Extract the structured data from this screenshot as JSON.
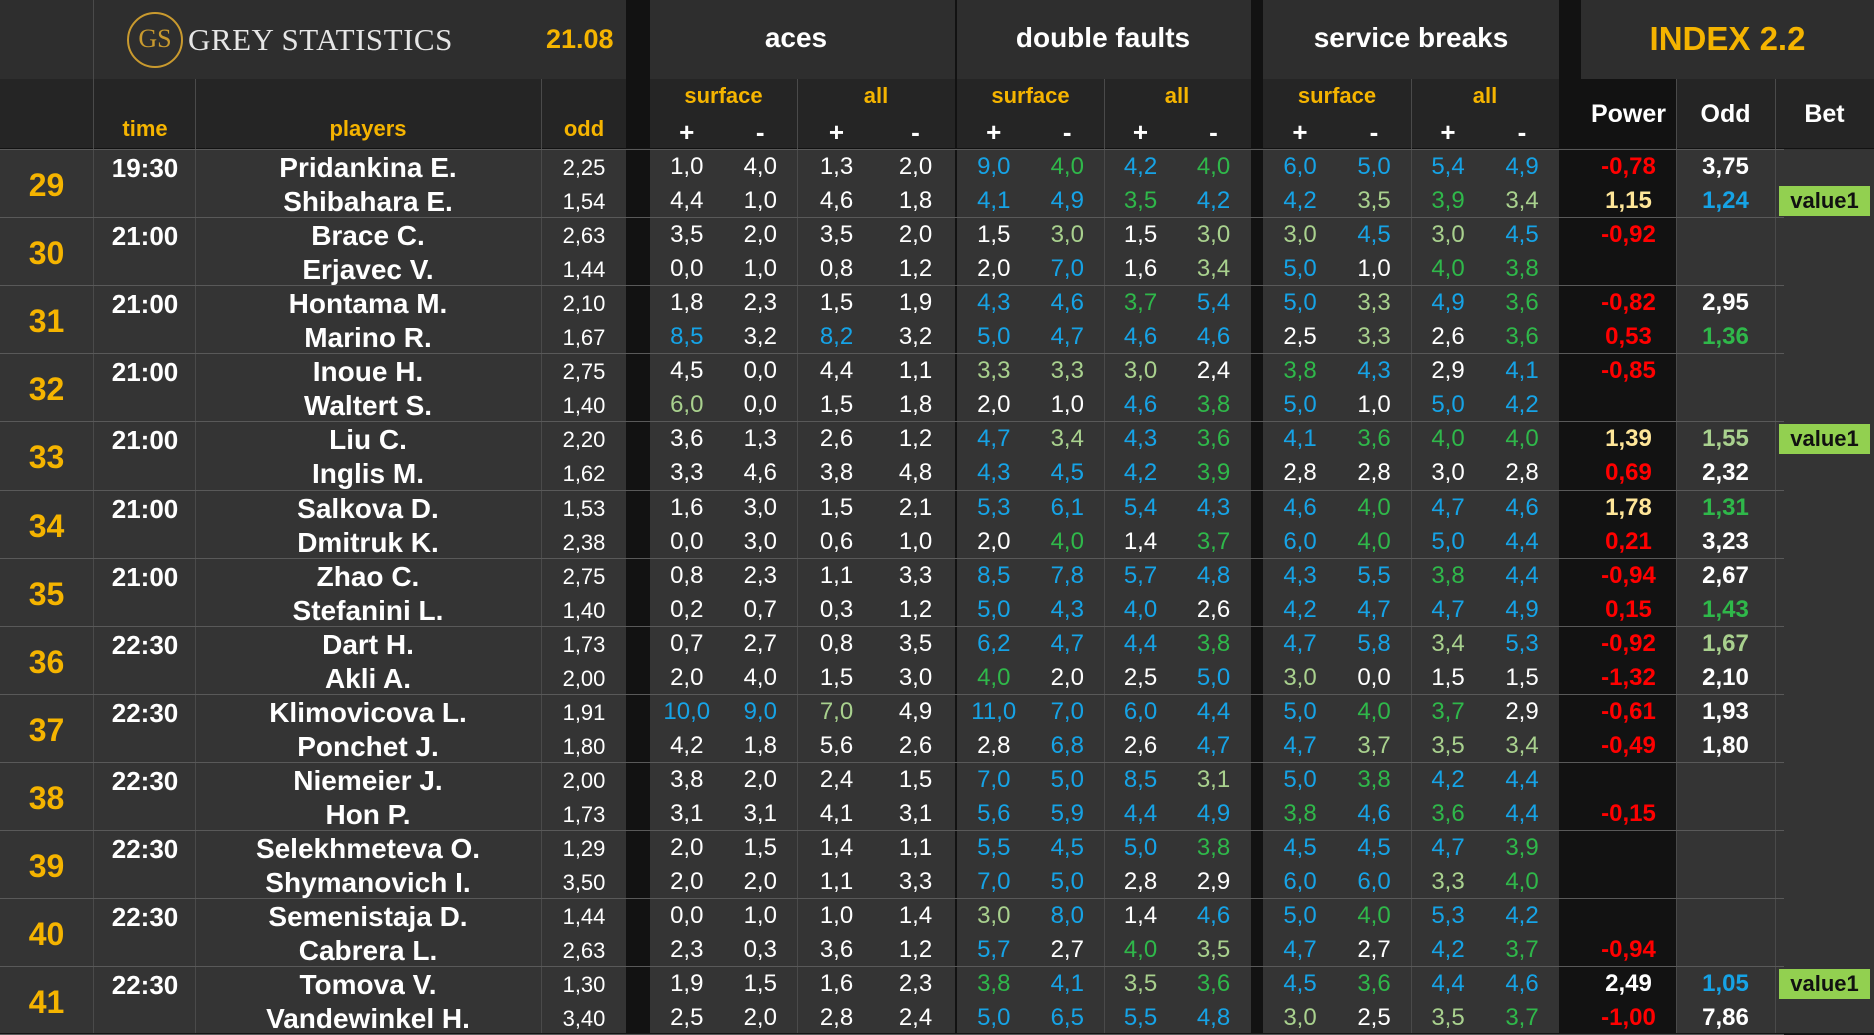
{
  "header": {
    "logo_mark": "GS",
    "brand": "GREY STATISTICS",
    "date": "21.08",
    "groups": [
      "aces",
      "double faults",
      "service breaks"
    ],
    "index_title": "INDEX 2.2",
    "col_time": "time",
    "col_players": "players",
    "col_odd": "odd",
    "sub_surface": "surface",
    "sub_all": "all",
    "plus": "+",
    "minus": "-",
    "idx_power": "Power",
    "idx_odd": "Odd",
    "idx_bet": "Bet"
  },
  "colors": {
    "blue": "#16a3e6",
    "lightgreen": "#a9d18e",
    "green": "#2fb84a",
    "white": "#ffffff",
    "red": "#ff0000",
    "yellow": "#ffe699",
    "gold": "#f5b400",
    "bet_bg": "#92d050"
  },
  "matches": [
    {
      "num": "29",
      "time": "19:30",
      "p": [
        {
          "name": "Pridankina E.",
          "odd": "2,25",
          "s": [
            "1,0:w",
            "4,0:w",
            "1,3:w",
            "2,0:w",
            "9,0:b",
            "4,0:g",
            "4,2:b",
            "4,0:g",
            "6,0:b",
            "5,0:b",
            "5,4:b",
            "4,9:b"
          ],
          "power": "-0,78:r",
          "iodd": "3,75:w",
          "bet": ""
        },
        {
          "name": "Shibahara E.",
          "odd": "1,54",
          "s": [
            "4,4:w",
            "1,0:w",
            "4,6:w",
            "1,8:w",
            "4,1:b",
            "4,9:b",
            "3,5:g",
            "4,2:b",
            "4,2:b",
            "3,5:l",
            "3,9:g",
            "3,4:l"
          ],
          "power": "1,15:y",
          "iodd": "1,24:b",
          "bet": "value1"
        }
      ]
    },
    {
      "num": "30",
      "time": "21:00",
      "p": [
        {
          "name": "Brace C.",
          "odd": "2,63",
          "s": [
            "3,5:w",
            "2,0:w",
            "3,5:w",
            "2,0:w",
            "1,5:w",
            "3,0:l",
            "1,5:w",
            "3,0:l",
            "3,0:l",
            "4,5:b",
            "3,0:l",
            "4,5:b"
          ],
          "power": "-0,92:r",
          "iodd": "",
          "bet": ""
        },
        {
          "name": "Erjavec V.",
          "odd": "1,44",
          "s": [
            "0,0:w",
            "1,0:w",
            "0,8:w",
            "1,2:w",
            "2,0:w",
            "7,0:b",
            "1,6:w",
            "3,4:l",
            "5,0:b",
            "1,0:w",
            "4,0:g",
            "3,8:g"
          ],
          "power": "",
          "iodd": "",
          "bet": ""
        }
      ]
    },
    {
      "num": "31",
      "time": "21:00",
      "p": [
        {
          "name": "Hontama M.",
          "odd": "2,10",
          "s": [
            "1,8:w",
            "2,3:w",
            "1,5:w",
            "1,9:w",
            "4,3:b",
            "4,6:b",
            "3,7:g",
            "5,4:b",
            "5,0:b",
            "3,3:l",
            "4,9:b",
            "3,6:g"
          ],
          "power": "-0,82:r",
          "iodd": "2,95:w",
          "bet": ""
        },
        {
          "name": "Marino R.",
          "odd": "1,67",
          "s": [
            "8,5:b",
            "3,2:w",
            "8,2:b",
            "3,2:w",
            "5,0:b",
            "4,7:b",
            "4,6:b",
            "4,6:b",
            "2,5:w",
            "3,3:l",
            "2,6:w",
            "3,6:g"
          ],
          "power": "0,53:r",
          "iodd": "1,36:g",
          "bet": ""
        }
      ]
    },
    {
      "num": "32",
      "time": "21:00",
      "p": [
        {
          "name": "Inoue H.",
          "odd": "2,75",
          "s": [
            "4,5:w",
            "0,0:w",
            "4,4:w",
            "1,1:w",
            "3,3:l",
            "3,3:l",
            "3,0:l",
            "2,4:w",
            "3,8:g",
            "4,3:b",
            "2,9:w",
            "4,1:b"
          ],
          "power": "-0,85:r",
          "iodd": "",
          "bet": ""
        },
        {
          "name": "Waltert S.",
          "odd": "1,40",
          "s": [
            "6,0:l",
            "0,0:w",
            "1,5:w",
            "1,8:w",
            "2,0:w",
            "1,0:w",
            "4,6:b",
            "3,8:g",
            "5,0:b",
            "1,0:w",
            "5,0:b",
            "4,2:b"
          ],
          "power": "",
          "iodd": "",
          "bet": ""
        }
      ]
    },
    {
      "num": "33",
      "time": "21:00",
      "p": [
        {
          "name": "Liu C.",
          "odd": "2,20",
          "s": [
            "3,6:w",
            "1,3:w",
            "2,6:w",
            "1,2:w",
            "4,7:b",
            "3,4:l",
            "4,3:b",
            "3,6:g",
            "4,1:b",
            "3,6:g",
            "4,0:g",
            "4,0:g"
          ],
          "power": "1,39:y",
          "iodd": "1,55:l",
          "bet": "value1"
        },
        {
          "name": "Inglis M.",
          "odd": "1,62",
          "s": [
            "3,3:w",
            "4,6:w",
            "3,8:w",
            "4,8:w",
            "4,3:b",
            "4,5:b",
            "4,2:b",
            "3,9:g",
            "2,8:w",
            "2,8:w",
            "3,0:w",
            "2,8:w"
          ],
          "power": "0,69:r",
          "iodd": "2,32:w",
          "bet": ""
        }
      ]
    },
    {
      "num": "34",
      "time": "21:00",
      "p": [
        {
          "name": "Salkova D.",
          "odd": "1,53",
          "s": [
            "1,6:w",
            "3,0:w",
            "1,5:w",
            "2,1:w",
            "5,3:b",
            "6,1:b",
            "5,4:b",
            "4,3:b",
            "4,6:b",
            "4,0:g",
            "4,7:b",
            "4,6:b"
          ],
          "power": "1,78:y",
          "iodd": "1,31:g",
          "bet": ""
        },
        {
          "name": "Dmitruk K.",
          "odd": "2,38",
          "s": [
            "0,0:w",
            "3,0:w",
            "0,6:w",
            "1,0:w",
            "2,0:w",
            "4,0:g",
            "1,4:w",
            "3,7:g",
            "6,0:b",
            "4,0:g",
            "5,0:b",
            "4,4:b"
          ],
          "power": "0,21:r",
          "iodd": "3,23:w",
          "bet": ""
        }
      ]
    },
    {
      "num": "35",
      "time": "21:00",
      "p": [
        {
          "name": "Zhao C.",
          "odd": "2,75",
          "s": [
            "0,8:w",
            "2,3:w",
            "1,1:w",
            "3,3:w",
            "8,5:b",
            "7,8:b",
            "5,7:b",
            "4,8:b",
            "4,3:b",
            "5,5:b",
            "3,8:g",
            "4,4:b"
          ],
          "power": "-0,94:r",
          "iodd": "2,67:w",
          "bet": ""
        },
        {
          "name": "Stefanini L.",
          "odd": "1,40",
          "s": [
            "0,2:w",
            "0,7:w",
            "0,3:w",
            "1,2:w",
            "5,0:b",
            "4,3:b",
            "4,0:b",
            "2,6:w",
            "4,2:b",
            "4,7:b",
            "4,7:b",
            "4,9:b"
          ],
          "power": "0,15:r",
          "iodd": "1,43:g",
          "bet": ""
        }
      ]
    },
    {
      "num": "36",
      "time": "22:30",
      "p": [
        {
          "name": "Dart H.",
          "odd": "1,73",
          "s": [
            "0,7:w",
            "2,7:w",
            "0,8:w",
            "3,5:w",
            "6,2:b",
            "4,7:b",
            "4,4:b",
            "3,8:g",
            "4,7:b",
            "5,8:b",
            "3,4:l",
            "5,3:b"
          ],
          "power": "-0,92:r",
          "iodd": "1,67:l",
          "bet": ""
        },
        {
          "name": "Akli A.",
          "odd": "2,00",
          "s": [
            "2,0:w",
            "4,0:w",
            "1,5:w",
            "3,0:w",
            "4,0:g",
            "2,0:w",
            "2,5:w",
            "5,0:b",
            "3,0:l",
            "0,0:w",
            "1,5:w",
            "1,5:w"
          ],
          "power": "-1,32:r",
          "iodd": "2,10:w",
          "bet": ""
        }
      ]
    },
    {
      "num": "37",
      "time": "22:30",
      "p": [
        {
          "name": "Klimovicova L.",
          "odd": "1,91",
          "s": [
            "10,0:b",
            "9,0:b",
            "7,0:l",
            "4,9:w",
            "11,0:b",
            "7,0:b",
            "6,0:b",
            "4,4:b",
            "5,0:b",
            "4,0:g",
            "3,7:g",
            "2,9:w"
          ],
          "power": "-0,61:r",
          "iodd": "1,93:w",
          "bet": ""
        },
        {
          "name": "Ponchet J.",
          "odd": "1,80",
          "s": [
            "4,2:w",
            "1,8:w",
            "5,6:w",
            "2,6:w",
            "2,8:w",
            "6,8:b",
            "2,6:w",
            "4,7:b",
            "4,7:b",
            "3,7:l",
            "3,5:l",
            "3,4:l"
          ],
          "power": "-0,49:r",
          "iodd": "1,80:w",
          "bet": ""
        }
      ]
    },
    {
      "num": "38",
      "time": "22:30",
      "p": [
        {
          "name": "Niemeier J.",
          "odd": "2,00",
          "s": [
            "3,8:w",
            "2,0:w",
            "2,4:w",
            "1,5:w",
            "7,0:b",
            "5,0:b",
            "8,5:b",
            "3,1:l",
            "5,0:b",
            "3,8:g",
            "4,2:b",
            "4,4:b"
          ],
          "power": "",
          "iodd": "",
          "bet": ""
        },
        {
          "name": "Hon P.",
          "odd": "1,73",
          "s": [
            "3,1:w",
            "3,1:w",
            "4,1:w",
            "3,1:w",
            "5,6:b",
            "5,9:b",
            "4,4:b",
            "4,9:b",
            "3,8:g",
            "4,6:b",
            "3,6:g",
            "4,4:b"
          ],
          "power": "-0,15:r",
          "iodd": "",
          "bet": ""
        }
      ]
    },
    {
      "num": "39",
      "time": "22:30",
      "p": [
        {
          "name": "Selekhmeteva O.",
          "odd": "1,29",
          "s": [
            "2,0:w",
            "1,5:w",
            "1,4:w",
            "1,1:w",
            "5,5:b",
            "4,5:b",
            "5,0:b",
            "3,8:g",
            "4,5:b",
            "4,5:b",
            "4,7:b",
            "3,9:g"
          ],
          "power": "",
          "iodd": "",
          "bet": ""
        },
        {
          "name": "Shymanovich I.",
          "odd": "3,50",
          "s": [
            "2,0:w",
            "2,0:w",
            "1,1:w",
            "3,3:w",
            "7,0:b",
            "5,0:b",
            "2,8:w",
            "2,9:w",
            "6,0:b",
            "6,0:b",
            "3,3:l",
            "4,0:g"
          ],
          "power": "",
          "iodd": "",
          "bet": ""
        }
      ]
    },
    {
      "num": "40",
      "time": "22:30",
      "p": [
        {
          "name": "Semenistaja D.",
          "odd": "1,44",
          "s": [
            "0,0:w",
            "1,0:w",
            "1,0:w",
            "1,4:w",
            "3,0:l",
            "8,0:b",
            "1,4:w",
            "4,6:b",
            "5,0:b",
            "4,0:g",
            "5,3:b",
            "4,2:b"
          ],
          "power": "",
          "iodd": "",
          "bet": ""
        },
        {
          "name": "Cabrera L.",
          "odd": "2,63",
          "s": [
            "2,3:w",
            "0,3:w",
            "3,6:w",
            "1,2:w",
            "5,7:b",
            "2,7:w",
            "4,0:g",
            "3,5:l",
            "4,7:b",
            "2,7:w",
            "4,2:b",
            "3,7:g"
          ],
          "power": "-0,94:r",
          "iodd": "",
          "bet": ""
        }
      ]
    },
    {
      "num": "41",
      "time": "22:30",
      "p": [
        {
          "name": "Tomova V.",
          "odd": "1,30",
          "s": [
            "1,9:w",
            "1,5:w",
            "1,6:w",
            "2,3:w",
            "3,8:g",
            "4,1:b",
            "3,5:l",
            "3,6:g",
            "4,5:b",
            "3,6:g",
            "4,4:b",
            "4,6:b"
          ],
          "power": "2,49:w",
          "iodd": "1,05:b",
          "bet": "value1"
        },
        {
          "name": "Vandewinkel H.",
          "odd": "3,40",
          "s": [
            "2,5:w",
            "2,0:w",
            "2,8:w",
            "2,4:w",
            "5,0:b",
            "6,5:b",
            "5,5:b",
            "4,8:b",
            "3,0:l",
            "2,5:w",
            "3,5:l",
            "3,7:g"
          ],
          "power": "-1,00:r",
          "iodd": "7,86:w",
          "bet": ""
        }
      ]
    }
  ]
}
